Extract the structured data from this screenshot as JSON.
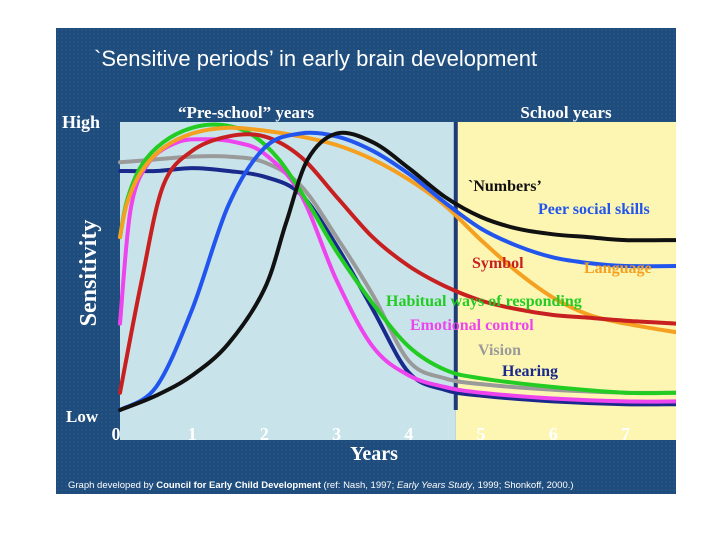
{
  "chart_data": {
    "type": "line",
    "title": "`Sensitive periods’ in early brain development",
    "ylabel": "Sensitivity",
    "y_high_label": "High",
    "y_low_label": "Low",
    "xlabel": "Years",
    "x_ticks": [
      "0",
      "1",
      "2",
      "3",
      "4",
      "5",
      "6",
      "7"
    ],
    "xlim": [
      0,
      7.7
    ],
    "ylim": [
      0,
      1
    ],
    "regions": [
      {
        "label": "“Pre-school” years",
        "from": 0,
        "to": 4.65,
        "color": "#c8e4ea"
      },
      {
        "label": "School years",
        "from": 4.65,
        "to": 7.7,
        "color": "#fdf6b2"
      }
    ],
    "series": [
      {
        "name": "Vision",
        "color": "#9a9a9a",
        "x": [
          0,
          0.5,
          1.0,
          1.5,
          2.0,
          2.5,
          3.0,
          3.5,
          4.0,
          4.5,
          5.0,
          6.0,
          7.0,
          7.7
        ],
        "y": [
          0.86,
          0.87,
          0.88,
          0.88,
          0.86,
          0.78,
          0.6,
          0.4,
          0.17,
          0.11,
          0.09,
          0.07,
          0.06,
          0.06
        ]
      },
      {
        "name": "Hearing",
        "color": "#1a2a8c",
        "x": [
          0,
          0.5,
          1.0,
          1.5,
          2.0,
          2.5,
          3.0,
          3.5,
          4.0,
          4.5,
          5.0,
          6.0,
          7.0,
          7.7
        ],
        "y": [
          0.83,
          0.83,
          0.84,
          0.83,
          0.81,
          0.75,
          0.57,
          0.35,
          0.13,
          0.07,
          0.05,
          0.03,
          0.02,
          0.02
        ]
      },
      {
        "name": "Emotional control",
        "color": "#ee44ee",
        "x": [
          0,
          0.15,
          0.4,
          0.8,
          1.2,
          1.6,
          2.0,
          2.5,
          3.0,
          3.5,
          4.0,
          4.5,
          5.0,
          6.0,
          7.0,
          7.7
        ],
        "y": [
          0.3,
          0.7,
          0.86,
          0.93,
          0.94,
          0.93,
          0.89,
          0.75,
          0.45,
          0.22,
          0.12,
          0.08,
          0.06,
          0.04,
          0.03,
          0.03
        ]
      },
      {
        "name": "Habitual ways of responding",
        "color": "#22cc22",
        "x": [
          0,
          0.1,
          0.3,
          0.6,
          1.0,
          1.4,
          1.8,
          2.2,
          2.6,
          3.0,
          3.5,
          4.0,
          4.5,
          5.0,
          6.0,
          7.0,
          7.7
        ],
        "y": [
          0.6,
          0.73,
          0.85,
          0.93,
          0.98,
          0.99,
          0.96,
          0.87,
          0.72,
          0.55,
          0.37,
          0.22,
          0.14,
          0.11,
          0.08,
          0.06,
          0.06
        ]
      },
      {
        "name": "Language",
        "color": "#f5a020",
        "x": [
          0,
          0.1,
          0.3,
          0.6,
          1.0,
          1.5,
          2.0,
          2.5,
          3.0,
          3.5,
          4.0,
          4.5,
          5.0,
          5.5,
          6.0,
          6.5,
          7.0,
          7.7
        ],
        "y": [
          0.6,
          0.72,
          0.83,
          0.91,
          0.96,
          0.98,
          0.97,
          0.95,
          0.92,
          0.87,
          0.8,
          0.71,
          0.59,
          0.48,
          0.39,
          0.33,
          0.3,
          0.27
        ]
      },
      {
        "name": "Symbol",
        "color": "#c82020",
        "x": [
          0,
          0.3,
          0.6,
          1.0,
          1.5,
          2.0,
          2.5,
          3.0,
          3.5,
          4.0,
          4.5,
          5.0,
          5.5,
          6.0,
          6.5,
          7.0,
          7.7
        ],
        "y": [
          0.06,
          0.45,
          0.78,
          0.9,
          0.95,
          0.95,
          0.88,
          0.74,
          0.6,
          0.5,
          0.43,
          0.38,
          0.35,
          0.33,
          0.32,
          0.31,
          0.3
        ]
      },
      {
        "name": "Peer social skills",
        "color": "#2255ee",
        "x": [
          0,
          0.5,
          1.0,
          1.5,
          2.0,
          2.5,
          3.0,
          3.5,
          4.0,
          4.5,
          5.0,
          5.5,
          6.0,
          6.5,
          7.0,
          7.7
        ],
        "y": [
          0.0,
          0.08,
          0.35,
          0.71,
          0.91,
          0.96,
          0.95,
          0.9,
          0.82,
          0.72,
          0.63,
          0.57,
          0.53,
          0.51,
          0.5,
          0.5
        ]
      },
      {
        "name": "`Numbers’",
        "color": "#111111",
        "x": [
          0,
          0.5,
          1.0,
          1.5,
          2.0,
          2.3,
          2.6,
          3.0,
          3.5,
          4.0,
          4.5,
          5.0,
          5.5,
          6.0,
          6.5,
          7.0,
          7.7
        ],
        "y": [
          0.0,
          0.05,
          0.12,
          0.23,
          0.42,
          0.65,
          0.87,
          0.96,
          0.93,
          0.84,
          0.74,
          0.67,
          0.63,
          0.61,
          0.6,
          0.59,
          0.59
        ]
      }
    ],
    "annotations": [
      {
        "text": "`Numbers’",
        "color": "#111111"
      },
      {
        "text": "Peer social skills",
        "color": "#2255ee"
      },
      {
        "text": "Symbol",
        "color": "#c82020"
      },
      {
        "text": "Language",
        "color": "#f5a020"
      },
      {
        "text": "Habitual ways of responding",
        "color": "#22cc22"
      },
      {
        "text": "Emotional control",
        "color": "#ee44ee"
      },
      {
        "text": "Vision",
        "color": "#9a9a9a"
      },
      {
        "text": "Hearing",
        "color": "#1a2a8c"
      }
    ],
    "grid": false,
    "legend": "none"
  },
  "footer": {
    "prefix": "Graph developed by ",
    "org": "Council for Early Child Development",
    "ref1": " (ref: Nash, 1997; ",
    "ref_italic": "Early Years Study",
    "ref2": ", 1999; Shonkoff, 2000.)"
  }
}
